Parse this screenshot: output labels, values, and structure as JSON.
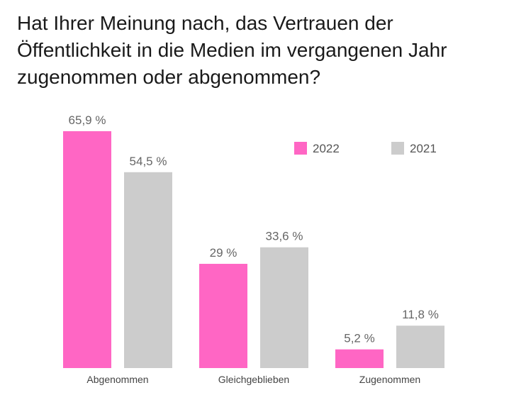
{
  "chart_data": {
    "type": "bar",
    "title": "Hat Ihrer Meinung nach, das Vertrauen der\nÖffentlichkeit in die Medien im vergangenen Jahr\nzugenommen oder abgenommen?",
    "categories": [
      "Abgenommen",
      "Gleichgeblieben",
      "Zugenommen"
    ],
    "series": [
      {
        "name": "2022",
        "values": [
          65.9,
          29,
          5.2
        ],
        "labels": [
          "65,9 %",
          "29 %",
          "5,2 %"
        ],
        "color": "#ff66c4"
      },
      {
        "name": "2021",
        "values": [
          54.5,
          33.6,
          11.8
        ],
        "labels": [
          "54,5 %",
          "33,6 %",
          "11,8 %"
        ],
        "color": "#cccccc"
      }
    ],
    "ylim": [
      0,
      65.9
    ],
    "grid": false,
    "legend": "top-right"
  }
}
